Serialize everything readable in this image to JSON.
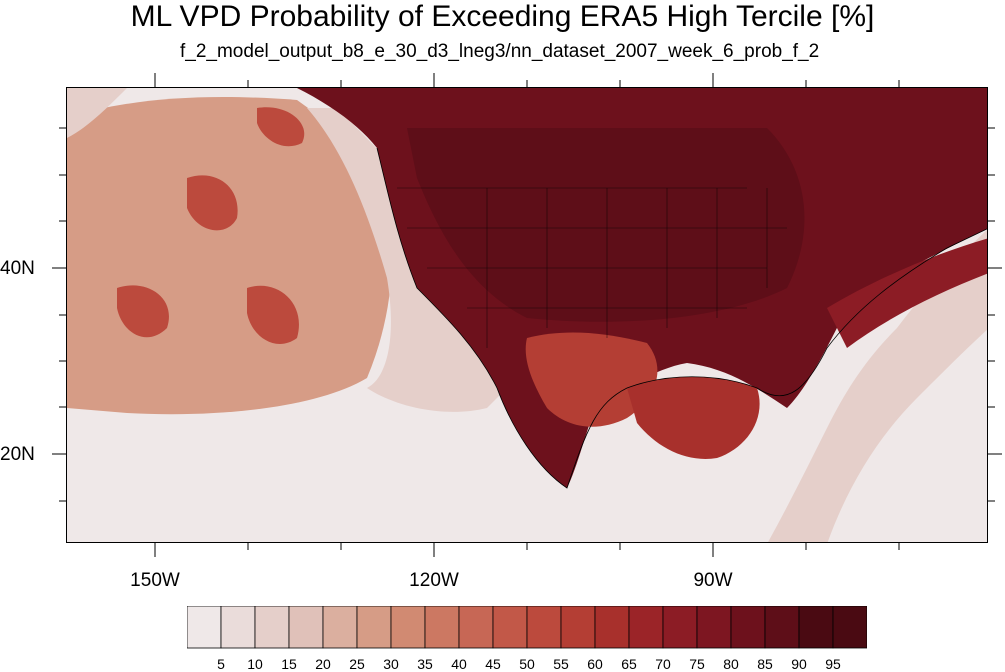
{
  "title": "ML VPD Probability of Exceeding ERA5 High Tercile [%]",
  "subtitle": "f_2_model_output_b8_e_30_d3_lneg3/nn_dataset_2007_week_6_prob_f_2",
  "lat_labels": [
    "40N",
    "20N"
  ],
  "lon_labels": [
    "150W",
    "120W",
    "90W"
  ],
  "colorbar": {
    "labels": [
      "5",
      "10",
      "15",
      "20",
      "25",
      "30",
      "35",
      "40",
      "45",
      "50",
      "55",
      "60",
      "65",
      "70",
      "75",
      "80",
      "85",
      "90",
      "95"
    ],
    "colors": [
      "#efe8e8",
      "#eadcda",
      "#e5cfca",
      "#e0c1b9",
      "#dbaf9f",
      "#d69c86",
      "#d18a72",
      "#cc7862",
      "#c76755",
      "#c25848",
      "#bc4a3d",
      "#b43e34",
      "#a8302c",
      "#9b2428",
      "#8c1c25",
      "#7d1621",
      "#6d111c",
      "#5e0e18",
      "#4a0a12"
    ]
  },
  "map": {
    "ocean_low": "#efe8e8",
    "ocean_pale": "#e5cfca",
    "ocean_mid": "#d69c86",
    "ocean_high": "#bc4a3d",
    "land_dark": "#6d111c",
    "land_darker": "#5e0e18",
    "land_mid": "#8c1c25",
    "land_light": "#b43e34",
    "gulf": "#a8302c",
    "border": "#000000"
  }
}
